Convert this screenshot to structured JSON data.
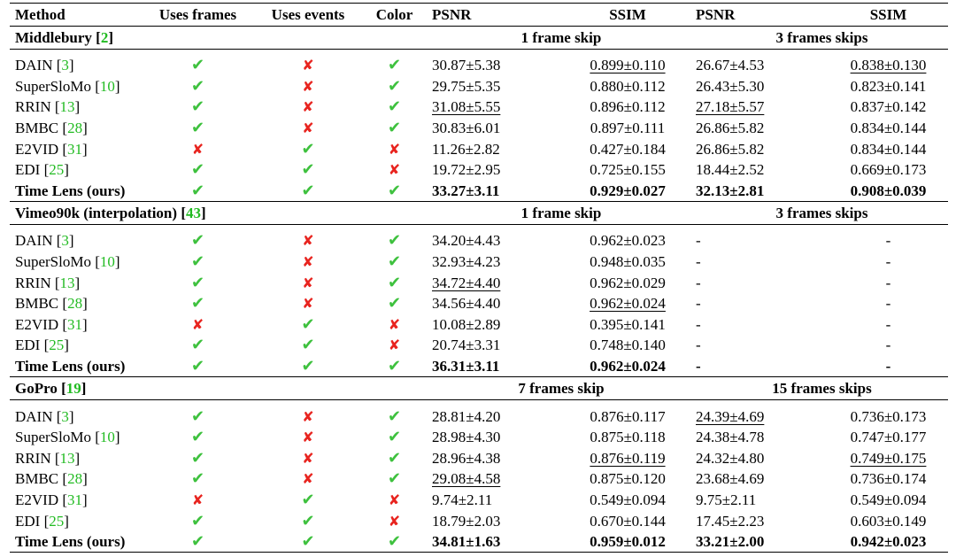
{
  "header": {
    "method": "Method",
    "uses_frames": "Uses frames",
    "uses_events": "Uses events",
    "color": "Color",
    "psnr1": "PSNR",
    "ssim1": "SSIM",
    "psnr2": "PSNR",
    "ssim2": "SSIM"
  },
  "colors": {
    "check": "#3ec13e",
    "cross": "#e8241f",
    "citation": "#22bb22"
  },
  "icons": {
    "check": "✔",
    "cross": "✘"
  },
  "sections": [
    {
      "name": "Middlebury",
      "ref": "2",
      "group1": "1 frame skip",
      "group2": "3 frames skips",
      "rows": [
        {
          "method": "DAIN",
          "ref": "3",
          "frames": true,
          "events": false,
          "color": true,
          "psnr1": "30.87±5.38",
          "ssim1": "0.899±0.110",
          "psnr2": "26.67±4.53",
          "ssim2": "0.838±0.130",
          "ul": [
            "ssim1",
            "ssim2"
          ]
        },
        {
          "method": "SuperSloMo",
          "ref": "10",
          "frames": true,
          "events": false,
          "color": true,
          "psnr1": "29.75±5.35",
          "ssim1": "0.880±0.112",
          "psnr2": "26.43±5.30",
          "ssim2": "0.823±0.141",
          "ul": []
        },
        {
          "method": "RRIN",
          "ref": "13",
          "frames": true,
          "events": false,
          "color": true,
          "psnr1": "31.08±5.55",
          "ssim1": "0.896±0.112",
          "psnr2": "27.18±5.57",
          "ssim2": "0.837±0.142",
          "ul": [
            "psnr1",
            "psnr2"
          ]
        },
        {
          "method": "BMBC",
          "ref": "28",
          "frames": true,
          "events": false,
          "color": true,
          "psnr1": "30.83±6.01",
          "ssim1": "0.897±0.111",
          "psnr2": "26.86±5.82",
          "ssim2": "0.834±0.144",
          "ul": []
        },
        {
          "method": "E2VID",
          "ref": "31",
          "frames": false,
          "events": true,
          "color": false,
          "psnr1": "11.26±2.82",
          "ssim1": "0.427±0.184",
          "psnr2": "26.86±5.82",
          "ssim2": "0.834±0.144",
          "ul": []
        },
        {
          "method": "EDI",
          "ref": "25",
          "frames": true,
          "events": true,
          "color": false,
          "psnr1": "19.72±2.95",
          "ssim1": "0.725±0.155",
          "psnr2": "18.44±2.52",
          "ssim2": "0.669±0.173",
          "ul": []
        },
        {
          "method": "Time Lens (ours)",
          "ref": "",
          "frames": true,
          "events": true,
          "color": true,
          "psnr1": "33.27±3.11",
          "ssim1": "0.929±0.027",
          "psnr2": "32.13±2.81",
          "ssim2": "0.908±0.039",
          "ul": [],
          "ours": true
        }
      ]
    },
    {
      "name": "Vimeo90k (interpolation)",
      "ref": "43",
      "group1": "1 frame skip",
      "group2": "3 frames skips",
      "rows": [
        {
          "method": "DAIN",
          "ref": "3",
          "frames": true,
          "events": false,
          "color": true,
          "psnr1": "34.20±4.43",
          "ssim1": "0.962±0.023",
          "psnr2": "-",
          "ssim2": "-",
          "ul": []
        },
        {
          "method": "SuperSloMo",
          "ref": "10",
          "frames": true,
          "events": false,
          "color": true,
          "psnr1": "32.93±4.23",
          "ssim1": "0.948±0.035",
          "psnr2": "-",
          "ssim2": "-",
          "ul": []
        },
        {
          "method": "RRIN",
          "ref": "13",
          "frames": true,
          "events": false,
          "color": true,
          "psnr1": "34.72±4.40",
          "ssim1": "0.962±0.029",
          "psnr2": "-",
          "ssim2": "-",
          "ul": [
            "psnr1"
          ]
        },
        {
          "method": "BMBC",
          "ref": "28",
          "frames": true,
          "events": false,
          "color": true,
          "psnr1": "34.56±4.40",
          "ssim1": "0.962±0.024",
          "psnr2": "-",
          "ssim2": "-",
          "ul": [
            "ssim1"
          ]
        },
        {
          "method": "E2VID",
          "ref": "31",
          "frames": false,
          "events": true,
          "color": false,
          "psnr1": "10.08±2.89",
          "ssim1": "0.395±0.141",
          "psnr2": "-",
          "ssim2": "-",
          "ul": []
        },
        {
          "method": "EDI",
          "ref": "25",
          "frames": true,
          "events": true,
          "color": false,
          "psnr1": "20.74±3.31",
          "ssim1": "0.748±0.140",
          "psnr2": "-",
          "ssim2": "-",
          "ul": []
        },
        {
          "method": "Time Lens (ours)",
          "ref": "",
          "frames": true,
          "events": true,
          "color": true,
          "psnr1": "36.31±3.11",
          "ssim1": "0.962±0.024",
          "psnr2": "-",
          "ssim2": "-",
          "ul": [],
          "ours": true
        }
      ]
    },
    {
      "name": "GoPro",
      "ref": "19",
      "group1": "7 frames skip",
      "group2": "15 frames skips",
      "rows": [
        {
          "method": "DAIN",
          "ref": "3",
          "frames": true,
          "events": false,
          "color": true,
          "psnr1": "28.81±4.20",
          "ssim1": "0.876±0.117",
          "psnr2": "24.39±4.69",
          "ssim2": "0.736±0.173",
          "ul": [
            "psnr2"
          ]
        },
        {
          "method": "SuperSloMo",
          "ref": "10",
          "frames": true,
          "events": false,
          "color": true,
          "psnr1": "28.98±4.30",
          "ssim1": "0.875±0.118",
          "psnr2": "24.38±4.78",
          "ssim2": "0.747±0.177",
          "ul": []
        },
        {
          "method": "RRIN",
          "ref": "13",
          "frames": true,
          "events": false,
          "color": true,
          "psnr1": "28.96±4.38",
          "ssim1": "0.876±0.119",
          "psnr2": "24.32±4.80",
          "ssim2": "0.749±0.175",
          "ul": [
            "ssim1",
            "ssim2"
          ]
        },
        {
          "method": "BMBC",
          "ref": "28",
          "frames": true,
          "events": false,
          "color": true,
          "psnr1": "29.08±4.58",
          "ssim1": "0.875±0.120",
          "psnr2": "23.68±4.69",
          "ssim2": "0.736±0.174",
          "ul": [
            "psnr1"
          ]
        },
        {
          "method": "E2VID",
          "ref": "31",
          "frames": false,
          "events": true,
          "color": false,
          "psnr1": "9.74±2.11",
          "ssim1": "0.549±0.094",
          "psnr2": "9.75±2.11",
          "ssim2": "0.549±0.094",
          "ul": []
        },
        {
          "method": "EDI",
          "ref": "25",
          "frames": true,
          "events": true,
          "color": false,
          "psnr1": "18.79±2.03",
          "ssim1": "0.670±0.144",
          "psnr2": "17.45±2.23",
          "ssim2": "0.603±0.149",
          "ul": []
        },
        {
          "method": "Time Lens (ours)",
          "ref": "",
          "frames": true,
          "events": true,
          "color": true,
          "psnr1": "34.81±1.63",
          "ssim1": "0.959±0.012",
          "psnr2": "33.21±2.00",
          "ssim2": "0.942±0.023",
          "ul": [],
          "ours": true
        }
      ]
    }
  ]
}
